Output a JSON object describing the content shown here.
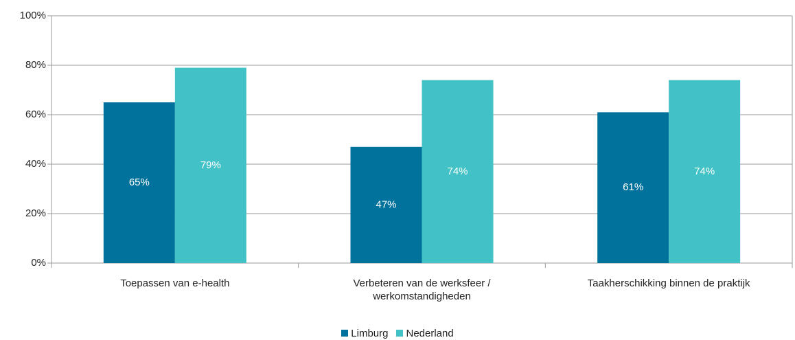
{
  "chart_data": {
    "type": "bar",
    "categories": [
      "Toepassen van e-health",
      "Verbeteren van de werksfeer / werkomstandigheden",
      "Taakherschikking binnen de praktijk"
    ],
    "series": [
      {
        "name": "Limburg",
        "color": "#00729c",
        "values": [
          65,
          47,
          61
        ],
        "value_labels": [
          "65%",
          "47%",
          "61%"
        ]
      },
      {
        "name": "Nederland",
        "color": "#42c2c6",
        "values": [
          79,
          74,
          74
        ],
        "value_labels": [
          "79%",
          "74%",
          "74%"
        ]
      }
    ],
    "ylim": [
      0,
      100
    ],
    "yticks": [
      {
        "value": 0,
        "label": "0%"
      },
      {
        "value": 20,
        "label": "20%"
      },
      {
        "value": 40,
        "label": "40%"
      },
      {
        "value": 60,
        "label": "60%"
      },
      {
        "value": 80,
        "label": "80%"
      },
      {
        "value": 100,
        "label": "100%"
      }
    ],
    "grid": true,
    "legend": "bottom"
  }
}
